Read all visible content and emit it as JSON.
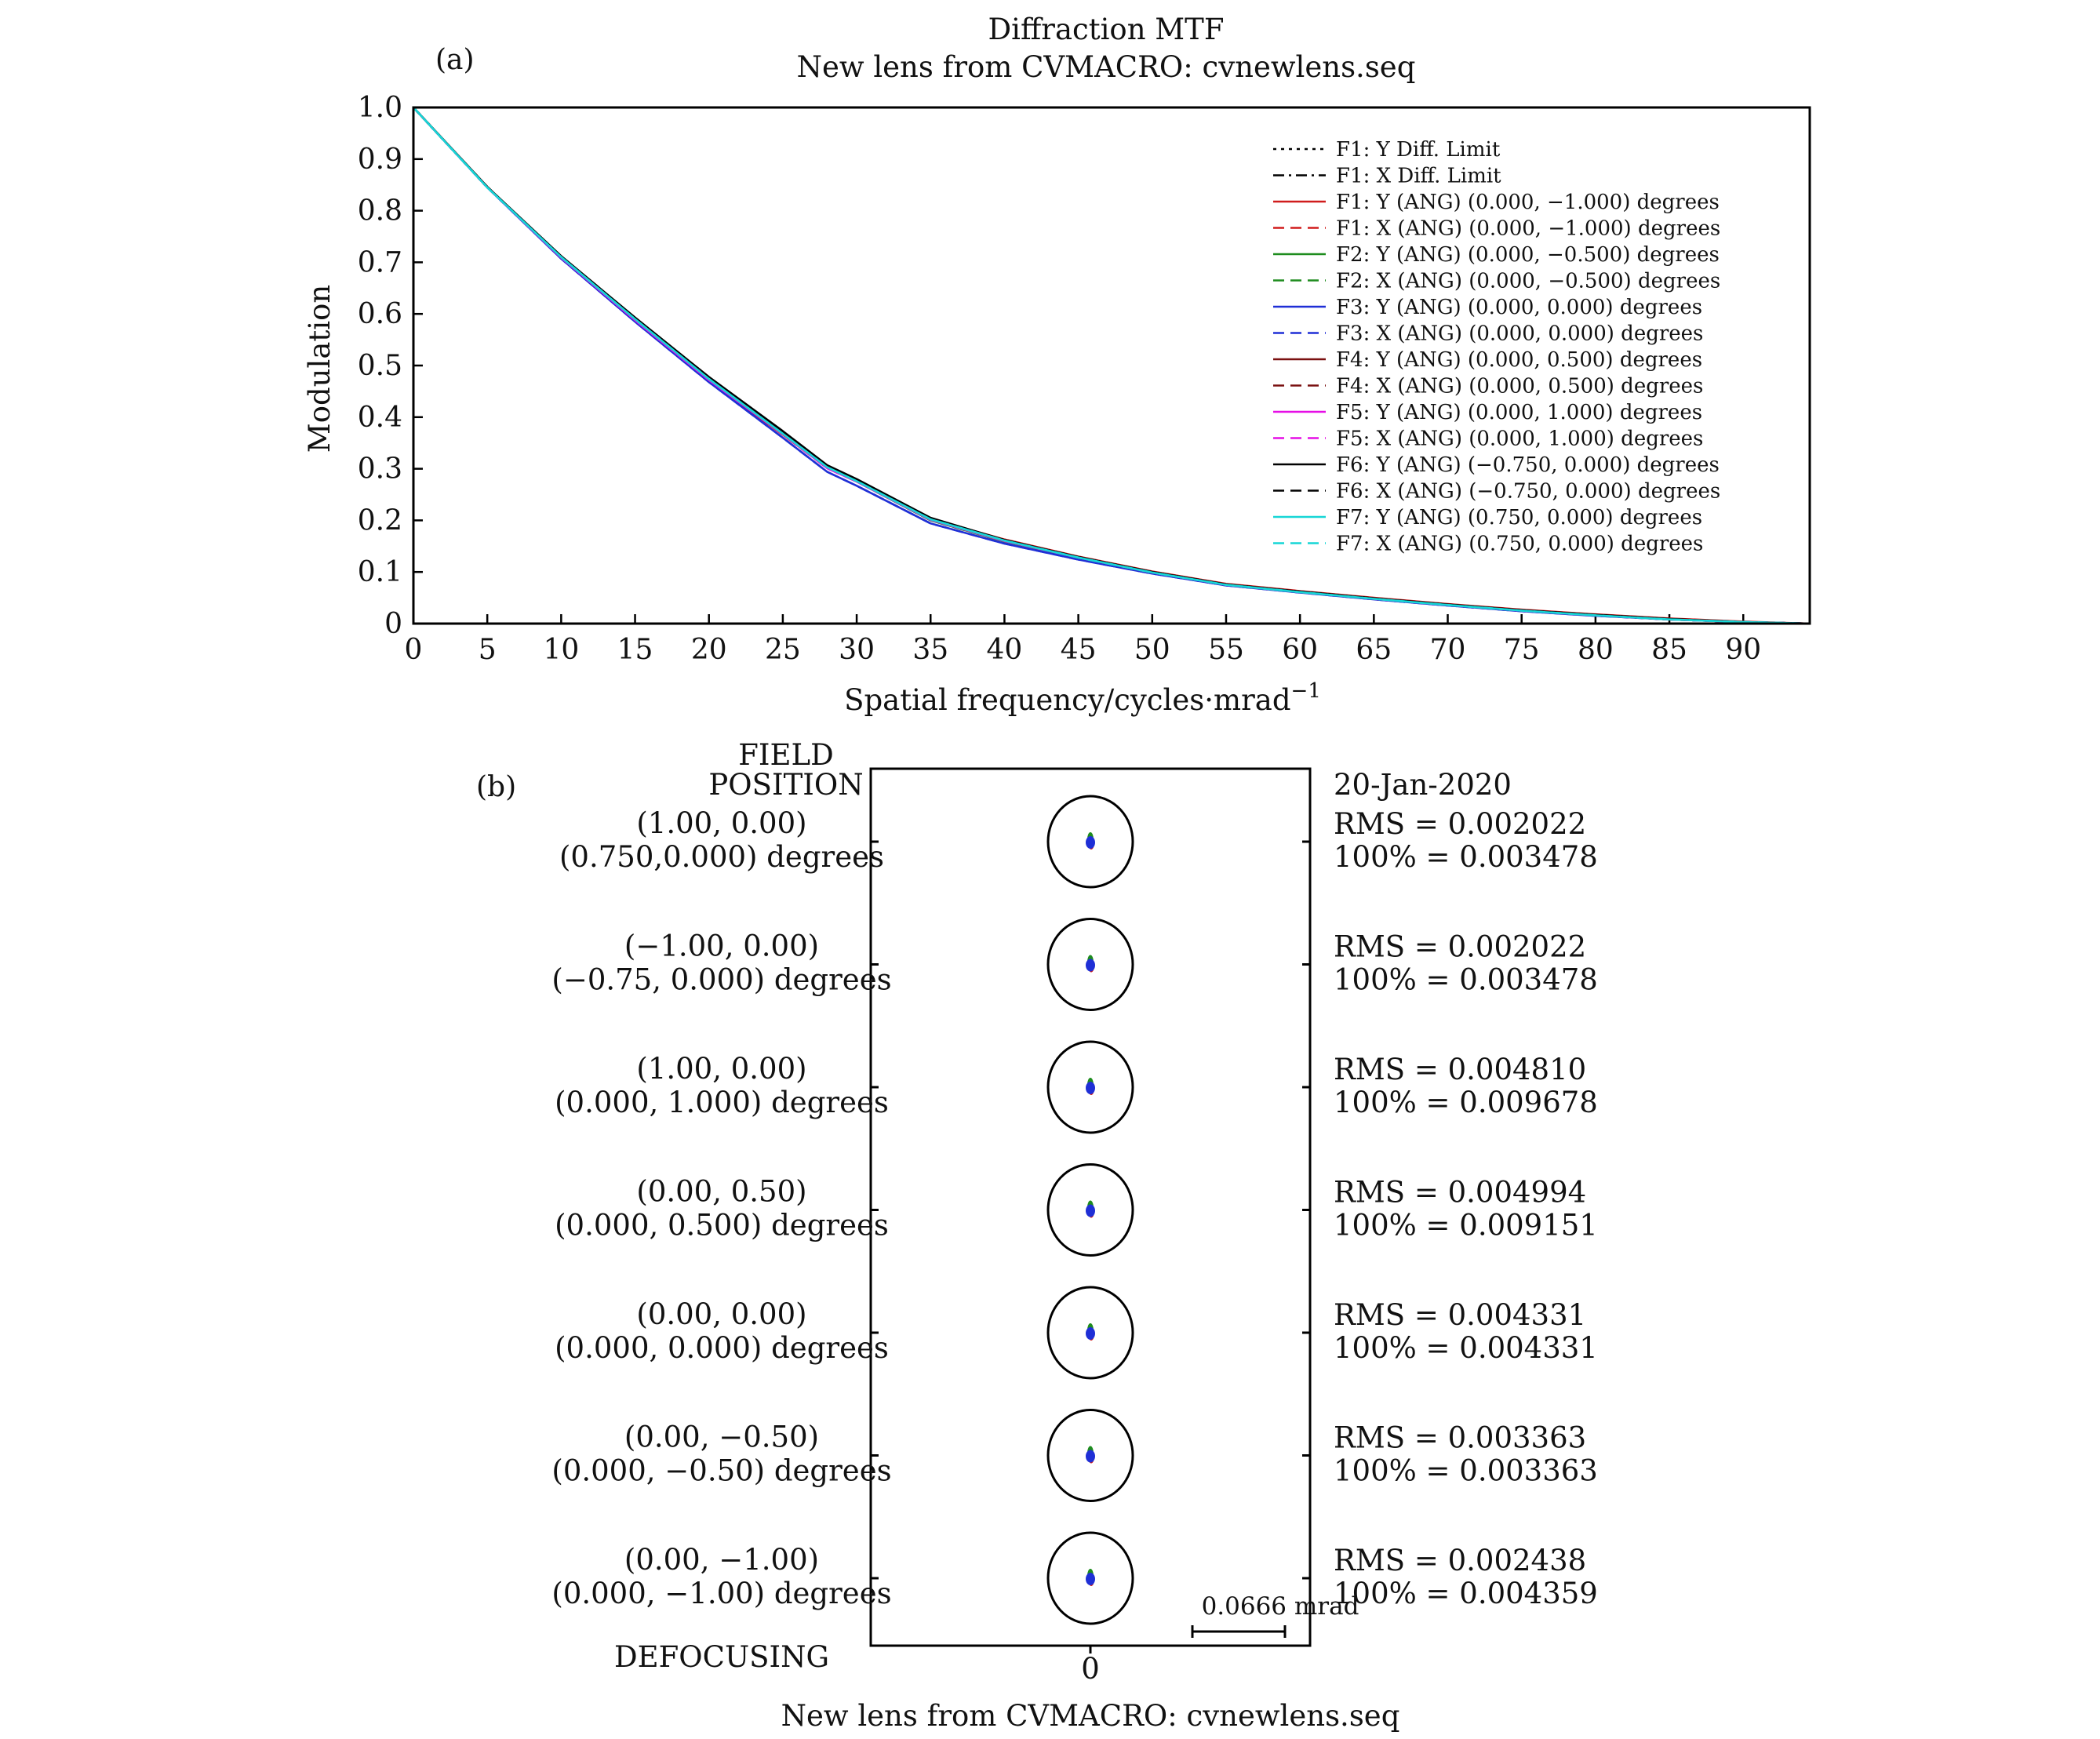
{
  "panel_a": {
    "label": "(a)",
    "title": "Diffraction MTF",
    "subtitle": "New lens from CVMACRO: cvnewlens.seq",
    "chart_data": {
      "type": "line",
      "title": "Diffraction MTF",
      "subtitle": "New lens from CVMACRO: cvnewlens.seq",
      "xlabel": "Spatial frequency/cycles·mrad",
      "xlabel_sup": "−1",
      "ylabel": "Modulation",
      "xlim": [
        0,
        94.5
      ],
      "ylim": [
        0,
        1.0
      ],
      "xticks": [
        0,
        5,
        10,
        15,
        20,
        25,
        30,
        35,
        40,
        45,
        50,
        55,
        60,
        65,
        70,
        75,
        80,
        85,
        90
      ],
      "yticks": [
        0,
        0.1,
        0.2,
        0.3,
        0.4,
        0.5,
        0.6,
        0.7,
        0.8,
        0.9,
        1.0
      ],
      "ytick_labels": [
        "0",
        "0.1",
        "0.2",
        "0.3",
        "0.4",
        "0.5",
        "0.6",
        "0.7",
        "0.8",
        "0.9",
        "1.0"
      ],
      "grid": false,
      "legend_position": "top-right",
      "x": [
        0,
        5,
        10,
        15,
        20,
        25,
        28,
        30,
        35,
        40,
        45,
        50,
        55,
        60,
        65,
        70,
        75,
        80,
        85,
        90,
        94.5
      ],
      "series": [
        {
          "name": "F1: Y Diff. Limit",
          "color": "#000000",
          "dash": "dotted",
          "values": [
            1.0,
            0.845,
            0.71,
            0.59,
            0.475,
            0.37,
            0.305,
            0.278,
            0.203,
            0.161,
            0.128,
            0.099,
            0.075,
            0.061,
            0.048,
            0.036,
            0.025,
            0.016,
            0.008,
            0.003,
            0.0
          ]
        },
        {
          "name": "F1: X Diff. Limit",
          "color": "#000000",
          "dash": "dashdot",
          "values": [
            1.0,
            0.845,
            0.71,
            0.59,
            0.475,
            0.37,
            0.305,
            0.278,
            0.203,
            0.161,
            0.128,
            0.099,
            0.075,
            0.061,
            0.048,
            0.036,
            0.025,
            0.016,
            0.008,
            0.003,
            0.0
          ]
        },
        {
          "name": "F1: Y (ANG) (0.000, −1.000) degrees",
          "color": "#d01c1c",
          "dash": "solid",
          "values": [
            1.0,
            0.846,
            0.708,
            0.586,
            0.47,
            0.366,
            0.302,
            0.276,
            0.203,
            0.163,
            0.13,
            0.101,
            0.077,
            0.063,
            0.05,
            0.038,
            0.027,
            0.018,
            0.01,
            0.004,
            0.0
          ]
        },
        {
          "name": "F1: X (ANG) (0.000, −1.000) degrees",
          "color": "#d01c1c",
          "dash": "dashed",
          "values": [
            1.0,
            0.845,
            0.708,
            0.587,
            0.471,
            0.366,
            0.301,
            0.275,
            0.202,
            0.161,
            0.128,
            0.099,
            0.075,
            0.061,
            0.048,
            0.036,
            0.025,
            0.016,
            0.008,
            0.003,
            0.0
          ]
        },
        {
          "name": "F2: Y (ANG) (0.000, −0.500) degrees",
          "color": "#1e8c1e",
          "dash": "solid",
          "values": [
            1.0,
            0.845,
            0.709,
            0.589,
            0.473,
            0.368,
            0.302,
            0.275,
            0.2,
            0.159,
            0.127,
            0.099,
            0.075,
            0.061,
            0.048,
            0.036,
            0.025,
            0.016,
            0.008,
            0.003,
            0.0
          ]
        },
        {
          "name": "F2: X (ANG) (0.000, −0.500) degrees",
          "color": "#1e8c1e",
          "dash": "dashed",
          "values": [
            1.0,
            0.845,
            0.709,
            0.589,
            0.473,
            0.368,
            0.302,
            0.275,
            0.2,
            0.159,
            0.127,
            0.099,
            0.075,
            0.061,
            0.048,
            0.036,
            0.025,
            0.016,
            0.008,
            0.003,
            0.0
          ]
        },
        {
          "name": "F3: Y (ANG) (0.000, 0.000) degrees",
          "color": "#1f2fd6",
          "dash": "solid",
          "values": [
            1.0,
            0.845,
            0.707,
            0.585,
            0.468,
            0.36,
            0.294,
            0.267,
            0.194,
            0.155,
            0.124,
            0.097,
            0.074,
            0.06,
            0.047,
            0.035,
            0.024,
            0.015,
            0.008,
            0.003,
            0.0
          ]
        },
        {
          "name": "F3: X (ANG) (0.000, 0.000) degrees",
          "color": "#1f2fd6",
          "dash": "dashed",
          "values": [
            1.0,
            0.845,
            0.707,
            0.585,
            0.468,
            0.36,
            0.294,
            0.267,
            0.194,
            0.155,
            0.124,
            0.097,
            0.074,
            0.06,
            0.047,
            0.035,
            0.024,
            0.015,
            0.008,
            0.003,
            0.0
          ]
        },
        {
          "name": "F4: Y (ANG) (0.000, 0.500) degrees",
          "color": "#7a1010",
          "dash": "solid",
          "values": [
            1.0,
            0.846,
            0.71,
            0.59,
            0.474,
            0.369,
            0.303,
            0.277,
            0.202,
            0.161,
            0.128,
            0.099,
            0.075,
            0.061,
            0.048,
            0.036,
            0.025,
            0.016,
            0.008,
            0.003,
            0.0
          ]
        },
        {
          "name": "F4: X (ANG) (0.000, 0.500) degrees",
          "color": "#7a1010",
          "dash": "dashed",
          "values": [
            1.0,
            0.846,
            0.71,
            0.59,
            0.474,
            0.369,
            0.303,
            0.277,
            0.202,
            0.161,
            0.128,
            0.099,
            0.075,
            0.061,
            0.048,
            0.036,
            0.025,
            0.016,
            0.008,
            0.003,
            0.0
          ]
        },
        {
          "name": "F5: Y (ANG) (0.000, 1.000) degrees",
          "color": "#e60ee6",
          "dash": "solid",
          "values": [
            1.0,
            0.845,
            0.709,
            0.588,
            0.472,
            0.367,
            0.301,
            0.275,
            0.201,
            0.16,
            0.128,
            0.099,
            0.075,
            0.061,
            0.048,
            0.036,
            0.025,
            0.016,
            0.008,
            0.003,
            0.0
          ]
        },
        {
          "name": "F5: X (ANG) (0.000, 1.000) degrees",
          "color": "#e60ee6",
          "dash": "dashed",
          "values": [
            1.0,
            0.845,
            0.709,
            0.588,
            0.472,
            0.367,
            0.301,
            0.275,
            0.201,
            0.16,
            0.128,
            0.099,
            0.075,
            0.061,
            0.048,
            0.036,
            0.025,
            0.016,
            0.008,
            0.003,
            0.0
          ]
        },
        {
          "name": "F6: Y (ANG) (−0.750, 0.000) degrees",
          "color": "#000000",
          "dash": "solid",
          "values": [
            1.0,
            0.846,
            0.712,
            0.593,
            0.478,
            0.373,
            0.307,
            0.28,
            0.205,
            0.162,
            0.129,
            0.1,
            0.076,
            0.062,
            0.049,
            0.037,
            0.026,
            0.017,
            0.009,
            0.003,
            0.0
          ]
        },
        {
          "name": "F6: X (ANG) (−0.750, 0.000) degrees",
          "color": "#000000",
          "dash": "dashed",
          "values": [
            1.0,
            0.846,
            0.711,
            0.592,
            0.477,
            0.372,
            0.306,
            0.279,
            0.204,
            0.162,
            0.129,
            0.1,
            0.076,
            0.062,
            0.049,
            0.037,
            0.026,
            0.017,
            0.009,
            0.003,
            0.0
          ]
        },
        {
          "name": "F7: Y (ANG) (0.750, 0.000) degrees",
          "color": "#17d6d6",
          "dash": "solid",
          "values": [
            1.0,
            0.845,
            0.71,
            0.59,
            0.474,
            0.368,
            0.303,
            0.276,
            0.202,
            0.161,
            0.128,
            0.099,
            0.075,
            0.061,
            0.048,
            0.036,
            0.025,
            0.016,
            0.008,
            0.003,
            0.0
          ]
        },
        {
          "name": "F7: X (ANG) (0.750, 0.000) degrees",
          "color": "#17d6d6",
          "dash": "dashed",
          "values": [
            1.0,
            0.845,
            0.71,
            0.59,
            0.474,
            0.368,
            0.303,
            0.276,
            0.202,
            0.161,
            0.128,
            0.099,
            0.075,
            0.061,
            0.048,
            0.036,
            0.025,
            0.016,
            0.008,
            0.003,
            0.0
          ]
        }
      ]
    }
  },
  "panel_b": {
    "label": "(b)",
    "field_header": [
      "FIELD",
      "POSITION"
    ],
    "date": "20-Jan-2020",
    "defocusing_label": "DEFOCUSING",
    "defocus_value": "0",
    "scale_label": "0.0666 mrad",
    "footer": "New lens from CVMACRO: cvnewlens.seq",
    "spot_colors": [
      "#1e8c1e",
      "#d01c1c",
      "#1f2fd6"
    ],
    "rows": [
      {
        "field": "(1.00, 0.00)",
        "angle": "(0.750,0.000) degrees",
        "rms": "RMS = 0.002022",
        "pct": "100% = 0.003478"
      },
      {
        "field": "(−1.00, 0.00)",
        "angle": "(−0.75, 0.000) degrees",
        "rms": "RMS = 0.002022",
        "pct": "100% = 0.003478"
      },
      {
        "field": "(1.00, 0.00)",
        "angle": "(0.000, 1.000) degrees",
        "rms": "RMS = 0.004810",
        "pct": "100% = 0.009678"
      },
      {
        "field": "(0.00, 0.50)",
        "angle": "(0.000, 0.500) degrees",
        "rms": "RMS = 0.004994",
        "pct": "100% = 0.009151"
      },
      {
        "field": "(0.00, 0.00)",
        "angle": "(0.000, 0.000) degrees",
        "rms": "RMS = 0.004331",
        "pct": "100% = 0.004331"
      },
      {
        "field": "(0.00, −0.50)",
        "angle": "(0.000, −0.50) degrees",
        "rms": "RMS = 0.003363",
        "pct": "100% = 0.003363"
      },
      {
        "field": "(0.00, −1.00)",
        "angle": "(0.000, −1.00) degrees",
        "rms": "RMS = 0.002438",
        "pct": "100% = 0.004359"
      }
    ]
  }
}
